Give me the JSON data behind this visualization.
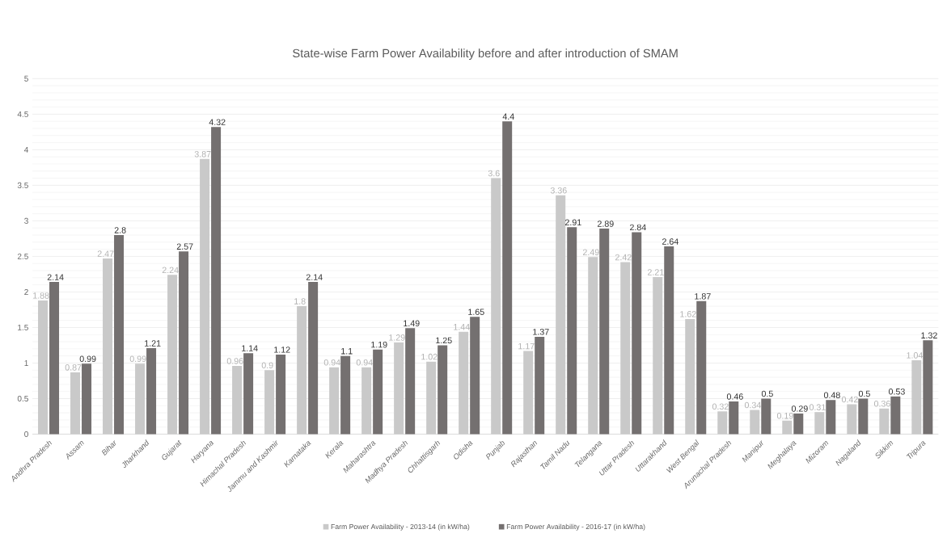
{
  "chart_data": {
    "type": "bar",
    "title": "State-wise Farm Power Availability before and after introduction of SMAM",
    "categories": [
      "Andhra Pradesh",
      "Assam",
      "Bihar",
      "Jharkhand",
      "Gujarat",
      "Haryana",
      "Himachal Pradesh",
      "Jammu and Kashmir",
      "Karnataka",
      "Kerala",
      "Maharashtra",
      "Madhya Pradesh",
      "Chhattisgarh",
      "Odisha",
      "Punjab",
      "Rajasthan",
      "Tamil Nadu",
      "Telangana",
      "Uttar Pradesh",
      "Uttarakhand",
      "West Bengal",
      "Arunachal Pradesh",
      "Manipur",
      "Meghalaya",
      "Mizoram",
      "Nagaland",
      "Sikkim",
      "Tripura"
    ],
    "series": [
      {
        "name": "Farm Power Availability - 2013-14 (in kW/ha)",
        "color": "#c9c9c9",
        "values": [
          1.88,
          0.87,
          2.47,
          0.99,
          2.24,
          3.87,
          0.96,
          0.9,
          1.8,
          0.94,
          0.94,
          1.29,
          1.02,
          1.44,
          3.6,
          1.17,
          3.36,
          2.49,
          2.42,
          2.21,
          1.62,
          0.32,
          0.34,
          0.19,
          0.31,
          0.42,
          0.36,
          1.04
        ]
      },
      {
        "name": "Farm Power Availability - 2016-17 (in kW/ha)",
        "color": "#747070",
        "values": [
          2.14,
          0.99,
          2.8,
          1.21,
          2.57,
          4.32,
          1.14,
          1.12,
          2.14,
          1.1,
          1.19,
          1.49,
          1.25,
          1.65,
          4.4,
          1.37,
          2.91,
          2.89,
          2.84,
          2.64,
          1.87,
          0.46,
          0.5,
          0.29,
          0.48,
          0.5,
          0.53,
          1.32
        ]
      }
    ],
    "ylim": [
      0,
      5
    ],
    "yticks": [
      0,
      0.5,
      1,
      1.5,
      2,
      2.5,
      3,
      3.5,
      4,
      4.5,
      5
    ],
    "grid": "y",
    "legend": "bottom",
    "data_labels": true
  }
}
